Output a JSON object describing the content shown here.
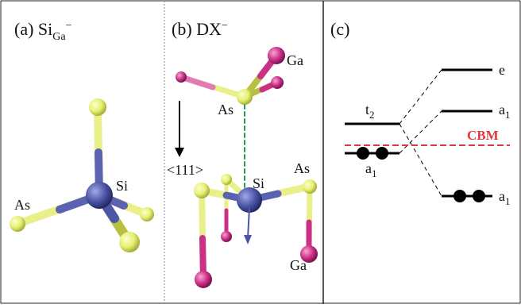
{
  "panels": [
    {
      "label": "(a)",
      "title": "Si",
      "title_sub": "Ga",
      "title_sup": "−",
      "atoms": [
        "As",
        "Si"
      ]
    },
    {
      "label": "(b)",
      "title": "DX",
      "title_sup": "−",
      "atoms": [
        "Ga",
        "As",
        "Si",
        "As",
        "Ga"
      ],
      "direction": "<111>"
    },
    {
      "label": "(c)",
      "levels": [
        {
          "text": "t",
          "sub": "2"
        },
        {
          "text": "a",
          "sub": "1"
        },
        {
          "text": "e",
          "sub": ""
        },
        {
          "text": "a",
          "sub": "1"
        },
        {
          "text": "a",
          "sub": "1"
        }
      ],
      "cbm": "CBM"
    }
  ]
}
